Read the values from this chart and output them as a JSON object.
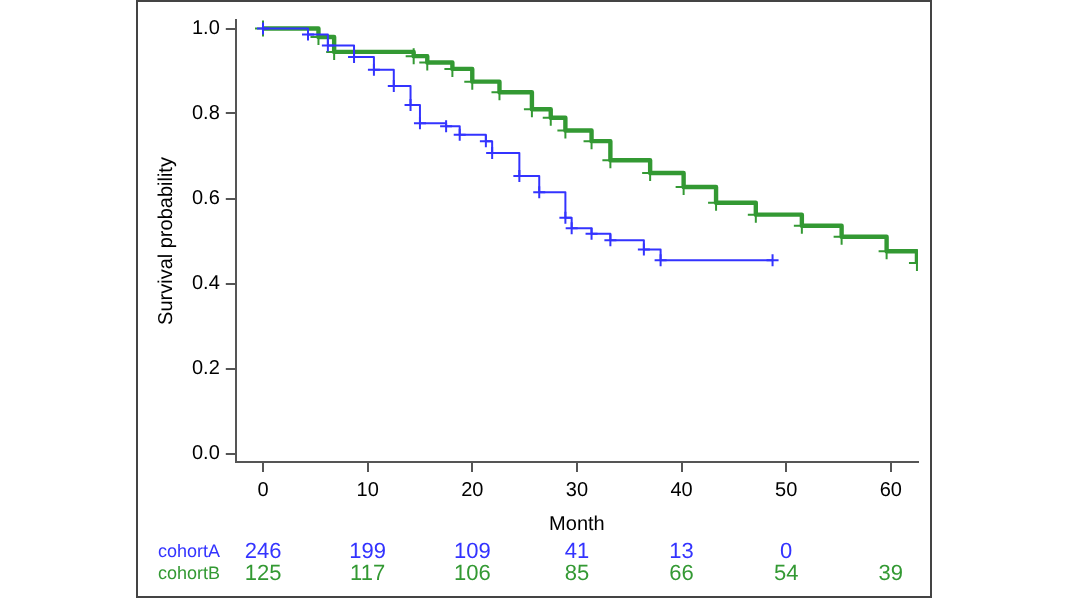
{
  "chart_data": {
    "type": "step",
    "xlabel": "Month",
    "ylabel": "Survival probability",
    "xlim": [
      -2.6,
      62.6
    ],
    "ylim": [
      -0.02,
      1.02
    ],
    "xticks": [
      0,
      10,
      20,
      30,
      40,
      50,
      60
    ],
    "yticks": [
      {
        "value": 0,
        "label": "0.0"
      },
      {
        "value": 0.2,
        "label": "0.2"
      },
      {
        "value": 0.4,
        "label": "0.4"
      },
      {
        "value": 0.6,
        "label": "0.6"
      },
      {
        "value": 0.8,
        "label": "0.8"
      },
      {
        "value": 1,
        "label": "1.0"
      }
    ],
    "grid": false,
    "legend": false,
    "marker": "cross",
    "line_style": "solid",
    "series": [
      {
        "name": "cohortA",
        "color": "#3333ff",
        "x": [
          0,
          4.3,
          6.2,
          8.7,
          10.6,
          12.5,
          14.1,
          15,
          17.5,
          18.8,
          21.3,
          21.9,
          24.5,
          26.4,
          28.9,
          29.5,
          31.4,
          33.2,
          36.4,
          38,
          48.7
        ],
        "values": [
          1,
          0.986,
          0.96,
          0.933,
          0.903,
          0.865,
          0.82,
          0.777,
          0.77,
          0.75,
          0.735,
          0.707,
          0.653,
          0.615,
          0.555,
          0.53,
          0.517,
          0.502,
          0.48,
          0.455,
          0.455
        ]
      },
      {
        "name": "cohortB",
        "color": "#339933",
        "x": [
          0,
          5.3,
          6.8,
          14.4,
          15.7,
          18.1,
          20,
          22.6,
          25.7,
          27.5,
          28.9,
          31.4,
          33.2,
          37,
          40.2,
          43.3,
          47.1,
          51.5,
          55.3,
          59.6,
          62.5
        ],
        "values": [
          1,
          0.98,
          0.945,
          0.935,
          0.92,
          0.905,
          0.875,
          0.85,
          0.81,
          0.79,
          0.76,
          0.735,
          0.69,
          0.66,
          0.627,
          0.59,
          0.562,
          0.536,
          0.51,
          0.476,
          0.448
        ]
      }
    ],
    "annotations": [
      "246 199 109 41 13 0",
      "125 117 106 85 66 54 39"
    ]
  }
}
